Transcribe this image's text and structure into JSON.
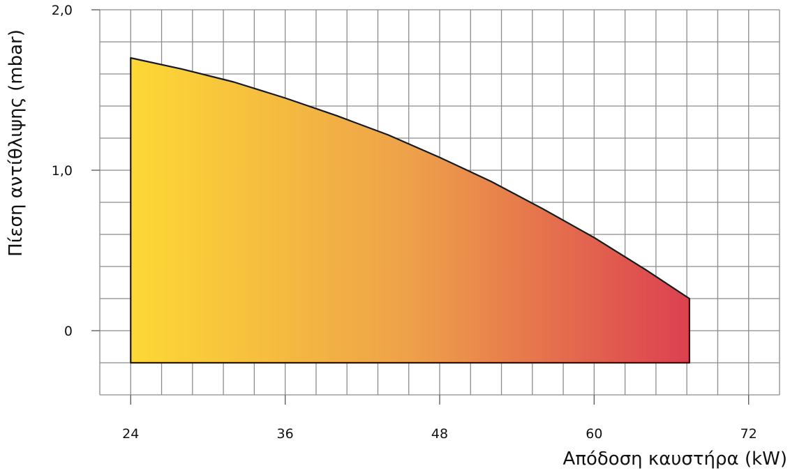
{
  "chart_data": {
    "type": "area",
    "title": "",
    "xlabel": "Απόδοση καυστήρα (kW)",
    "ylabel": "Πίεση αντίθλιψης (mbar)",
    "x_ticks": [
      {
        "value": 24,
        "label": "24"
      },
      {
        "value": 36,
        "label": "36"
      },
      {
        "value": 48,
        "label": "48"
      },
      {
        "value": 60,
        "label": "60"
      },
      {
        "value": 72,
        "label": "72"
      }
    ],
    "y_ticks": [
      {
        "value": 0,
        "label": "0"
      },
      {
        "value": 1.0,
        "label": "1,0"
      },
      {
        "value": 2.0,
        "label": "2,0"
      }
    ],
    "xlim": [
      21.6,
      74.4
    ],
    "ylim": [
      -0.4,
      2.0
    ],
    "grid": true,
    "baseline": -0.2,
    "x": [
      24,
      28,
      32,
      36,
      40,
      44,
      48,
      52,
      56,
      60,
      64,
      67.4
    ],
    "values": [
      1.7,
      1.63,
      1.55,
      1.45,
      1.34,
      1.22,
      1.08,
      0.93,
      0.76,
      0.58,
      0.38,
      0.2
    ],
    "gradient": [
      "#fdd835",
      "#eea14a",
      "#dc4050"
    ],
    "line_color": "#1a1a1a",
    "grid_color": "#8c8c8c"
  }
}
